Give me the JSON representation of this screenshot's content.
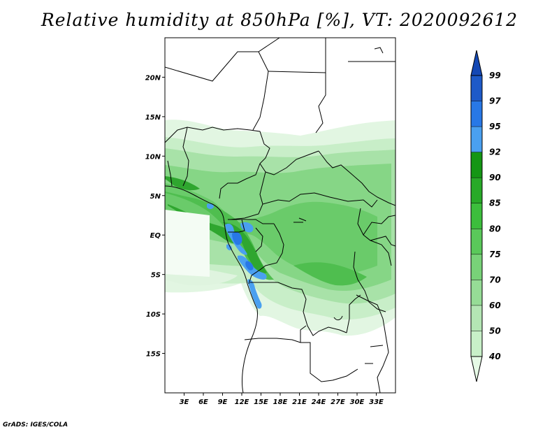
{
  "title": "Relative humidity at 850hPa [%], VT: 2020092612",
  "credit": "GrADS: IGES/COLA",
  "map": {
    "lon_range": [
      0,
      36
    ],
    "lat_range": [
      -20,
      25
    ],
    "lat_labels": [
      "20N",
      "15N",
      "10N",
      "5N",
      "EQ",
      "5S",
      "10S",
      "15S"
    ],
    "lat_values": [
      20,
      15,
      10,
      5,
      0,
      -5,
      -10,
      -15
    ],
    "lon_labels": [
      "3E",
      "6E",
      "9E",
      "12E",
      "15E",
      "18E",
      "21E",
      "24E",
      "27E",
      "30E",
      "33E"
    ],
    "lon_values": [
      3,
      6,
      9,
      12,
      15,
      18,
      21,
      24,
      27,
      30,
      33
    ]
  },
  "colorbar": {
    "levels": [
      "40",
      "50",
      "60",
      "70",
      "75",
      "80",
      "85",
      "90",
      "92",
      "95",
      "97",
      "99"
    ],
    "colors": [
      "#e6fae6",
      "#c8f0c8",
      "#b4e6b4",
      "#96dc96",
      "#78d278",
      "#5ac85a",
      "#3cbe3c",
      "#28aa28",
      "#149614",
      "#4aa0f0",
      "#2878e6",
      "#1e5ac8",
      "#1448b4"
    ]
  }
}
